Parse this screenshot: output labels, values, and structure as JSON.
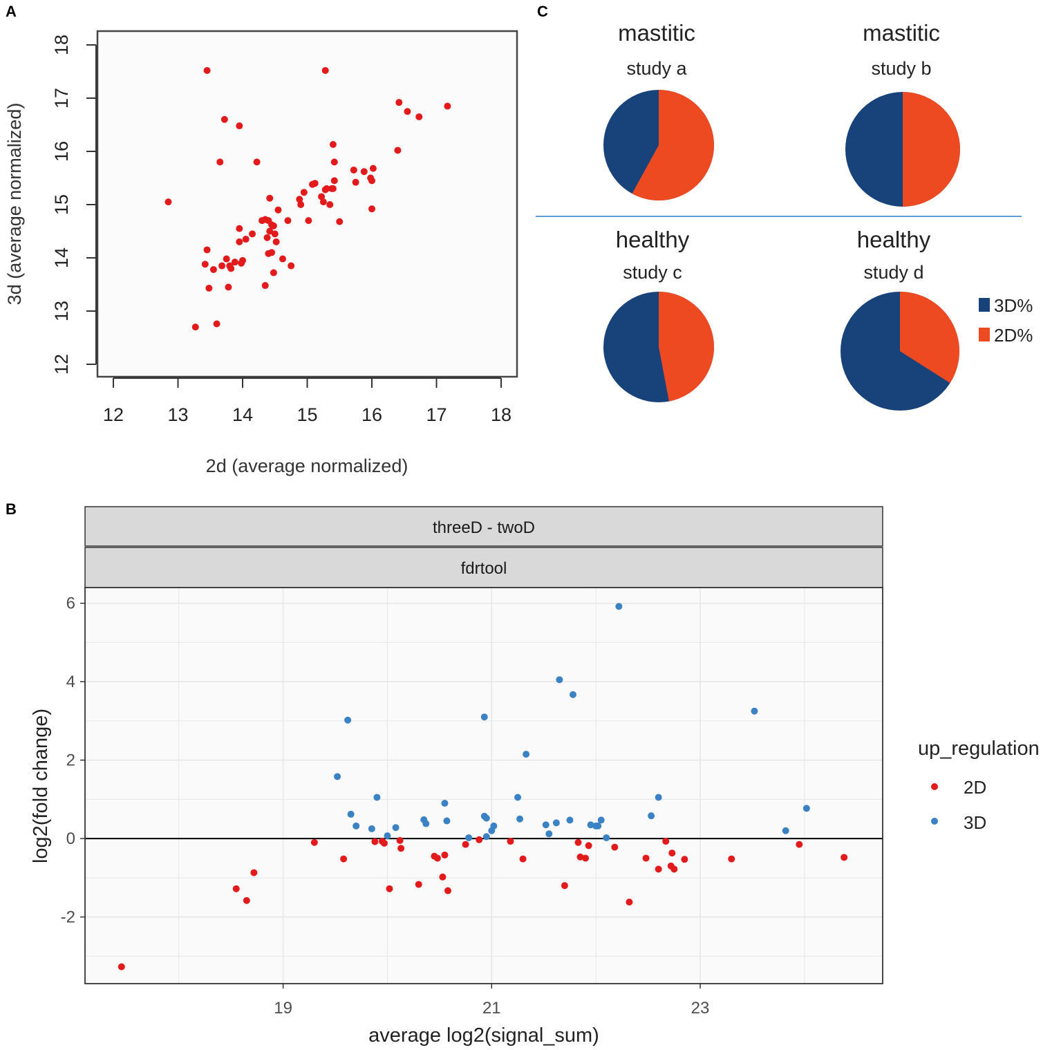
{
  "panels": {
    "a_letter": "A",
    "b_letter": "B",
    "c_letter": "C"
  },
  "colors": {
    "red_point": "#e31a1c",
    "blue_point": "#3a82c4",
    "pie_blue": "#17427a",
    "pie_orange": "#ee4a22",
    "divider": "#5b9bd5"
  },
  "chart_data": [
    {
      "id": "panel-a",
      "type": "scatter",
      "title": "",
      "xlabel": "2d (average normalized)",
      "ylabel": "3d (average normalized)",
      "xlim": [
        12,
        18
      ],
      "ylim": [
        12,
        18
      ],
      "xticks": [
        "12",
        "13",
        "14",
        "15",
        "16",
        "17",
        "18"
      ],
      "yticks": [
        "12",
        "13",
        "14",
        "15",
        "16",
        "17",
        "18"
      ],
      "x": [
        13.45,
        15.28,
        13.72,
        13.95,
        13.65,
        14.22,
        12.85,
        13.27,
        13.6,
        13.45,
        13.42,
        13.55,
        13.68,
        13.75,
        13.8,
        13.82,
        13.88,
        13.95,
        14.05,
        13.95,
        14.0,
        13.98,
        14.15,
        14.3,
        14.35,
        14.4,
        14.42,
        14.45,
        14.38,
        14.5,
        14.48,
        14.52,
        14.55,
        14.45,
        14.62,
        14.7,
        14.75,
        14.4,
        14.42,
        14.48,
        14.88,
        14.9,
        14.95,
        15.02,
        15.08,
        15.12,
        15.22,
        15.25,
        15.3,
        15.35,
        15.38,
        15.4,
        15.42,
        15.5,
        15.72,
        15.75,
        15.88,
        15.98,
        16.0,
        16.02,
        16.0,
        15.4,
        15.42,
        16.4,
        16.42,
        16.55,
        16.73,
        17.17,
        14.35,
        13.78,
        13.48,
        15.28
      ],
      "y": [
        17.52,
        17.52,
        16.6,
        16.48,
        15.8,
        15.8,
        15.05,
        12.7,
        12.76,
        14.15,
        13.88,
        13.78,
        13.85,
        13.98,
        13.85,
        13.8,
        13.92,
        14.55,
        14.35,
        14.3,
        13.95,
        13.9,
        14.45,
        14.7,
        14.72,
        14.7,
        14.5,
        14.62,
        14.38,
        14.45,
        14.6,
        14.3,
        14.9,
        14.1,
        13.98,
        14.7,
        13.85,
        14.08,
        15.12,
        13.72,
        15.1,
        15.0,
        15.23,
        14.7,
        15.38,
        15.4,
        15.15,
        15.05,
        15.3,
        15.0,
        15.3,
        16.13,
        15.8,
        14.68,
        15.65,
        15.42,
        15.62,
        15.5,
        15.45,
        15.68,
        14.92,
        15.3,
        15.45,
        16.02,
        16.92,
        16.75,
        16.65,
        16.85,
        13.48,
        13.45,
        13.43,
        15.28
      ],
      "series_color": "#e31a1c"
    },
    {
      "id": "panel-b",
      "type": "scatter",
      "strip_labels": [
        "threeD - twoD",
        "fdrtool"
      ],
      "xlabel": "average log2(signal_sum)",
      "ylabel": "log2(fold change)",
      "xlim": [
        17.1,
        24.75
      ],
      "ylim": [
        -3.7,
        6.4
      ],
      "xticks": [
        "19",
        "21",
        "23"
      ],
      "yticks": [
        "-2",
        "0",
        "2",
        "4",
        "6"
      ],
      "hline": 0,
      "legend_title": "up_regulation",
      "series": [
        {
          "name": "2D",
          "color": "#e31a1c",
          "x": [
            17.45,
            18.55,
            18.65,
            18.72,
            19.3,
            19.58,
            19.88,
            19.95,
            19.97,
            20.02,
            20.12,
            20.13,
            20.3,
            20.45,
            20.48,
            20.53,
            20.55,
            20.58,
            20.75,
            20.88,
            21.18,
            21.3,
            21.7,
            21.83,
            21.85,
            21.9,
            21.93,
            22.18,
            22.32,
            22.48,
            22.6,
            22.67,
            22.72,
            22.73,
            22.75,
            22.85,
            23.3,
            23.95,
            24.38
          ],
          "y": [
            -3.27,
            -1.28,
            -1.58,
            -0.87,
            -0.1,
            -0.52,
            -0.08,
            -0.07,
            -0.12,
            -1.28,
            -0.05,
            -0.25,
            -1.17,
            -0.45,
            -0.5,
            -0.98,
            -0.42,
            -1.33,
            -0.15,
            -0.03,
            -0.07,
            -0.52,
            -1.2,
            -0.1,
            -0.47,
            -0.5,
            -0.18,
            -0.22,
            -1.62,
            -0.5,
            -0.78,
            -0.07,
            -0.7,
            -0.37,
            -0.78,
            -0.53,
            -0.52,
            -0.15,
            -0.48
          ]
        },
        {
          "name": "3D",
          "color": "#3a82c4",
          "x": [
            19.52,
            19.62,
            19.65,
            19.7,
            19.85,
            19.9,
            20.0,
            20.08,
            20.35,
            20.37,
            20.55,
            20.57,
            20.78,
            20.93,
            20.93,
            20.95,
            20.95,
            21.0,
            21.02,
            21.25,
            21.27,
            21.33,
            21.52,
            21.55,
            21.62,
            21.65,
            21.75,
            21.78,
            21.95,
            22.0,
            22.02,
            22.05,
            22.1,
            22.22,
            22.53,
            22.6,
            23.52,
            23.82,
            24.02
          ],
          "y": [
            1.58,
            3.02,
            0.62,
            0.32,
            0.25,
            1.05,
            0.07,
            0.28,
            0.48,
            0.38,
            0.9,
            0.45,
            0.02,
            3.1,
            0.57,
            0.52,
            0.05,
            0.2,
            0.32,
            1.05,
            0.5,
            2.15,
            0.35,
            0.12,
            0.4,
            4.05,
            0.47,
            3.67,
            0.35,
            0.32,
            0.32,
            0.47,
            0.02,
            5.92,
            0.58,
            1.05,
            3.25,
            0.2,
            0.77
          ]
        }
      ]
    },
    {
      "id": "panel-c",
      "type": "pie",
      "legend": [
        "3D%",
        "2D%"
      ],
      "pies": [
        {
          "title": "mastitic",
          "subtitle": "study a",
          "values": [
            42,
            58
          ]
        },
        {
          "title": "mastitic",
          "subtitle": "study b",
          "values": [
            50,
            50
          ]
        },
        {
          "title": "healthy",
          "subtitle": "study c",
          "values": [
            53,
            47
          ]
        },
        {
          "title": "healthy",
          "subtitle": "study d",
          "values": [
            66,
            34
          ]
        }
      ]
    }
  ]
}
